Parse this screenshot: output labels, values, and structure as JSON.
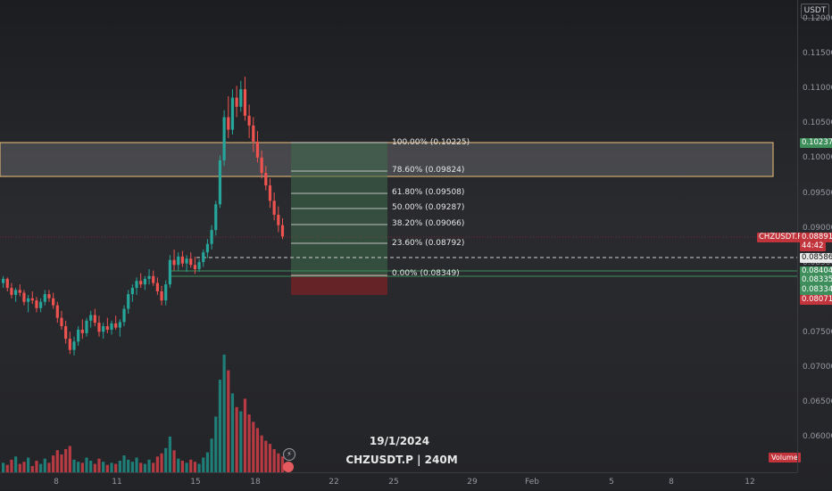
{
  "quote_currency": "USDT",
  "symbol_timeframe": "CHZUSDT.P | 240M",
  "watermark_date": "19/1/2024",
  "price_axis_ticks": [
    "0.12000",
    "0.11500",
    "0.11000",
    "0.10500",
    "0.10000",
    "0.09500",
    "0.09000",
    "0.08500",
    "0.08000",
    "0.07500",
    "0.07000",
    "0.06500",
    "0.06000"
  ],
  "date_axis_ticks": [
    "8",
    "11",
    "15",
    "18",
    "22",
    "25",
    "29",
    "Feb",
    "5",
    "8",
    "12"
  ],
  "badges": {
    "zone_top": "0.10237",
    "symbol": "CHZUSDT.P",
    "last_price": "0.08891",
    "countdown": "44:42",
    "dashed_level": "0.08586",
    "level_a": "0.08404",
    "level_b": "0.08335",
    "level_c": "0.08334",
    "low_level": "0.08071"
  },
  "fib_levels": [
    {
      "label": "100.00% (0.10225)"
    },
    {
      "label": "78.60% (0.09824)"
    },
    {
      "label": "61.80% (0.09508)"
    },
    {
      "label": "50.00% (0.09287)"
    },
    {
      "label": "38.20% (0.09066)"
    },
    {
      "label": "23.60% (0.08792)"
    },
    {
      "label": "0.00% (0.08349)"
    }
  ],
  "volume_label": "Volume",
  "colors": {
    "up": "#26a69a",
    "down": "#ef5350",
    "vol_up": "#1f7f78",
    "vol_down": "#b83b43",
    "zone": "#f0c27a",
    "fib_box": "#3e6b4c",
    "loss_box": "#7a2127"
  },
  "chart_data": {
    "type": "candlestick",
    "price_scale": [
      0.06,
      0.12
    ],
    "candles": [
      [
        0.0822,
        0.0832,
        0.0815,
        0.0828
      ],
      [
        0.0828,
        0.083,
        0.081,
        0.0815
      ],
      [
        0.0815,
        0.0822,
        0.08,
        0.0805
      ],
      [
        0.0805,
        0.0815,
        0.0795,
        0.0812
      ],
      [
        0.0812,
        0.082,
        0.0803,
        0.0808
      ],
      [
        0.0808,
        0.0812,
        0.079,
        0.0795
      ],
      [
        0.0795,
        0.0805,
        0.078,
        0.08
      ],
      [
        0.08,
        0.081,
        0.0792,
        0.0797
      ],
      [
        0.0797,
        0.0802,
        0.078,
        0.0786
      ],
      [
        0.0786,
        0.08,
        0.078,
        0.0795
      ],
      [
        0.0795,
        0.0812,
        0.079,
        0.0806
      ],
      [
        0.0806,
        0.0812,
        0.0795,
        0.08
      ],
      [
        0.08,
        0.0808,
        0.0785,
        0.079
      ],
      [
        0.079,
        0.0795,
        0.0765,
        0.0772
      ],
      [
        0.0772,
        0.0782,
        0.0755,
        0.076
      ],
      [
        0.076,
        0.0768,
        0.0735,
        0.0742
      ],
      [
        0.0742,
        0.0752,
        0.072,
        0.0726
      ],
      [
        0.0726,
        0.0745,
        0.0718,
        0.0738
      ],
      [
        0.0738,
        0.076,
        0.0732,
        0.0755
      ],
      [
        0.0755,
        0.077,
        0.0742,
        0.075
      ],
      [
        0.075,
        0.0772,
        0.0745,
        0.0768
      ],
      [
        0.0768,
        0.0782,
        0.0758,
        0.0776
      ],
      [
        0.0776,
        0.0785,
        0.076,
        0.0765
      ],
      [
        0.0765,
        0.0775,
        0.0745,
        0.0752
      ],
      [
        0.0752,
        0.0765,
        0.0742,
        0.076
      ],
      [
        0.076,
        0.0772,
        0.075,
        0.0755
      ],
      [
        0.0755,
        0.0768,
        0.0748,
        0.0764
      ],
      [
        0.0764,
        0.0775,
        0.0755,
        0.0758
      ],
      [
        0.0758,
        0.077,
        0.0745,
        0.0766
      ],
      [
        0.0766,
        0.079,
        0.076,
        0.0785
      ],
      [
        0.0785,
        0.0812,
        0.0778,
        0.0806
      ],
      [
        0.0806,
        0.082,
        0.0795,
        0.0815
      ],
      [
        0.0815,
        0.083,
        0.0805,
        0.0825
      ],
      [
        0.0825,
        0.0836,
        0.0815,
        0.082
      ],
      [
        0.082,
        0.0832,
        0.0812,
        0.0828
      ],
      [
        0.0828,
        0.0842,
        0.082,
        0.0832
      ],
      [
        0.0832,
        0.084,
        0.0818,
        0.0822
      ],
      [
        0.0822,
        0.083,
        0.0805,
        0.081
      ],
      [
        0.081,
        0.0818,
        0.079,
        0.0797
      ],
      [
        0.0797,
        0.0826,
        0.079,
        0.082
      ],
      [
        0.082,
        0.0862,
        0.0815,
        0.0855
      ],
      [
        0.0855,
        0.087,
        0.084,
        0.0848
      ],
      [
        0.0848,
        0.0866,
        0.084,
        0.086
      ],
      [
        0.086,
        0.0868,
        0.0845,
        0.085
      ],
      [
        0.085,
        0.0862,
        0.0838,
        0.0857
      ],
      [
        0.0857,
        0.0866,
        0.0844,
        0.0848
      ],
      [
        0.0848,
        0.086,
        0.0835,
        0.0842
      ],
      [
        0.0842,
        0.0856,
        0.0838,
        0.0852
      ],
      [
        0.0852,
        0.087,
        0.0845,
        0.0866
      ],
      [
        0.0866,
        0.0885,
        0.0858,
        0.0878
      ],
      [
        0.0878,
        0.0905,
        0.087,
        0.0898
      ],
      [
        0.0898,
        0.094,
        0.089,
        0.0935
      ],
      [
        0.0935,
        0.1005,
        0.093,
        0.0998
      ],
      [
        0.0998,
        0.107,
        0.099,
        0.106
      ],
      [
        0.106,
        0.109,
        0.103,
        0.1042
      ],
      [
        0.1042,
        0.11,
        0.1035,
        0.1088
      ],
      [
        0.1088,
        0.1105,
        0.106,
        0.1075
      ],
      [
        0.1075,
        0.1112,
        0.1068,
        0.11
      ],
      [
        0.11,
        0.1118,
        0.1055,
        0.1062
      ],
      [
        0.1062,
        0.1078,
        0.103,
        0.1048
      ],
      [
        0.1048,
        0.106,
        0.101,
        0.1025
      ],
      [
        0.1025,
        0.104,
        0.0995,
        0.1002
      ],
      [
        0.1002,
        0.1012,
        0.0972,
        0.098
      ],
      [
        0.098,
        0.099,
        0.0955,
        0.0962
      ],
      [
        0.0962,
        0.0972,
        0.093,
        0.094
      ],
      [
        0.094,
        0.0952,
        0.0912,
        0.092
      ],
      [
        0.092,
        0.0932,
        0.0895,
        0.0905
      ],
      [
        0.0905,
        0.0915,
        0.0885,
        0.0889
      ]
    ],
    "volume": [
      9,
      7,
      12,
      15,
      8,
      10,
      14,
      6,
      11,
      8,
      13,
      9,
      16,
      21,
      17,
      22,
      25,
      12,
      10,
      9,
      14,
      11,
      8,
      13,
      10,
      7,
      9,
      8,
      11,
      16,
      12,
      10,
      14,
      9,
      8,
      12,
      9,
      15,
      18,
      23,
      34,
      21,
      13,
      11,
      9,
      12,
      10,
      8,
      14,
      19,
      32,
      53,
      88,
      112,
      97,
      75,
      62,
      58,
      70,
      55,
      48,
      42,
      35,
      30,
      27,
      22,
      18,
      15
    ]
  }
}
